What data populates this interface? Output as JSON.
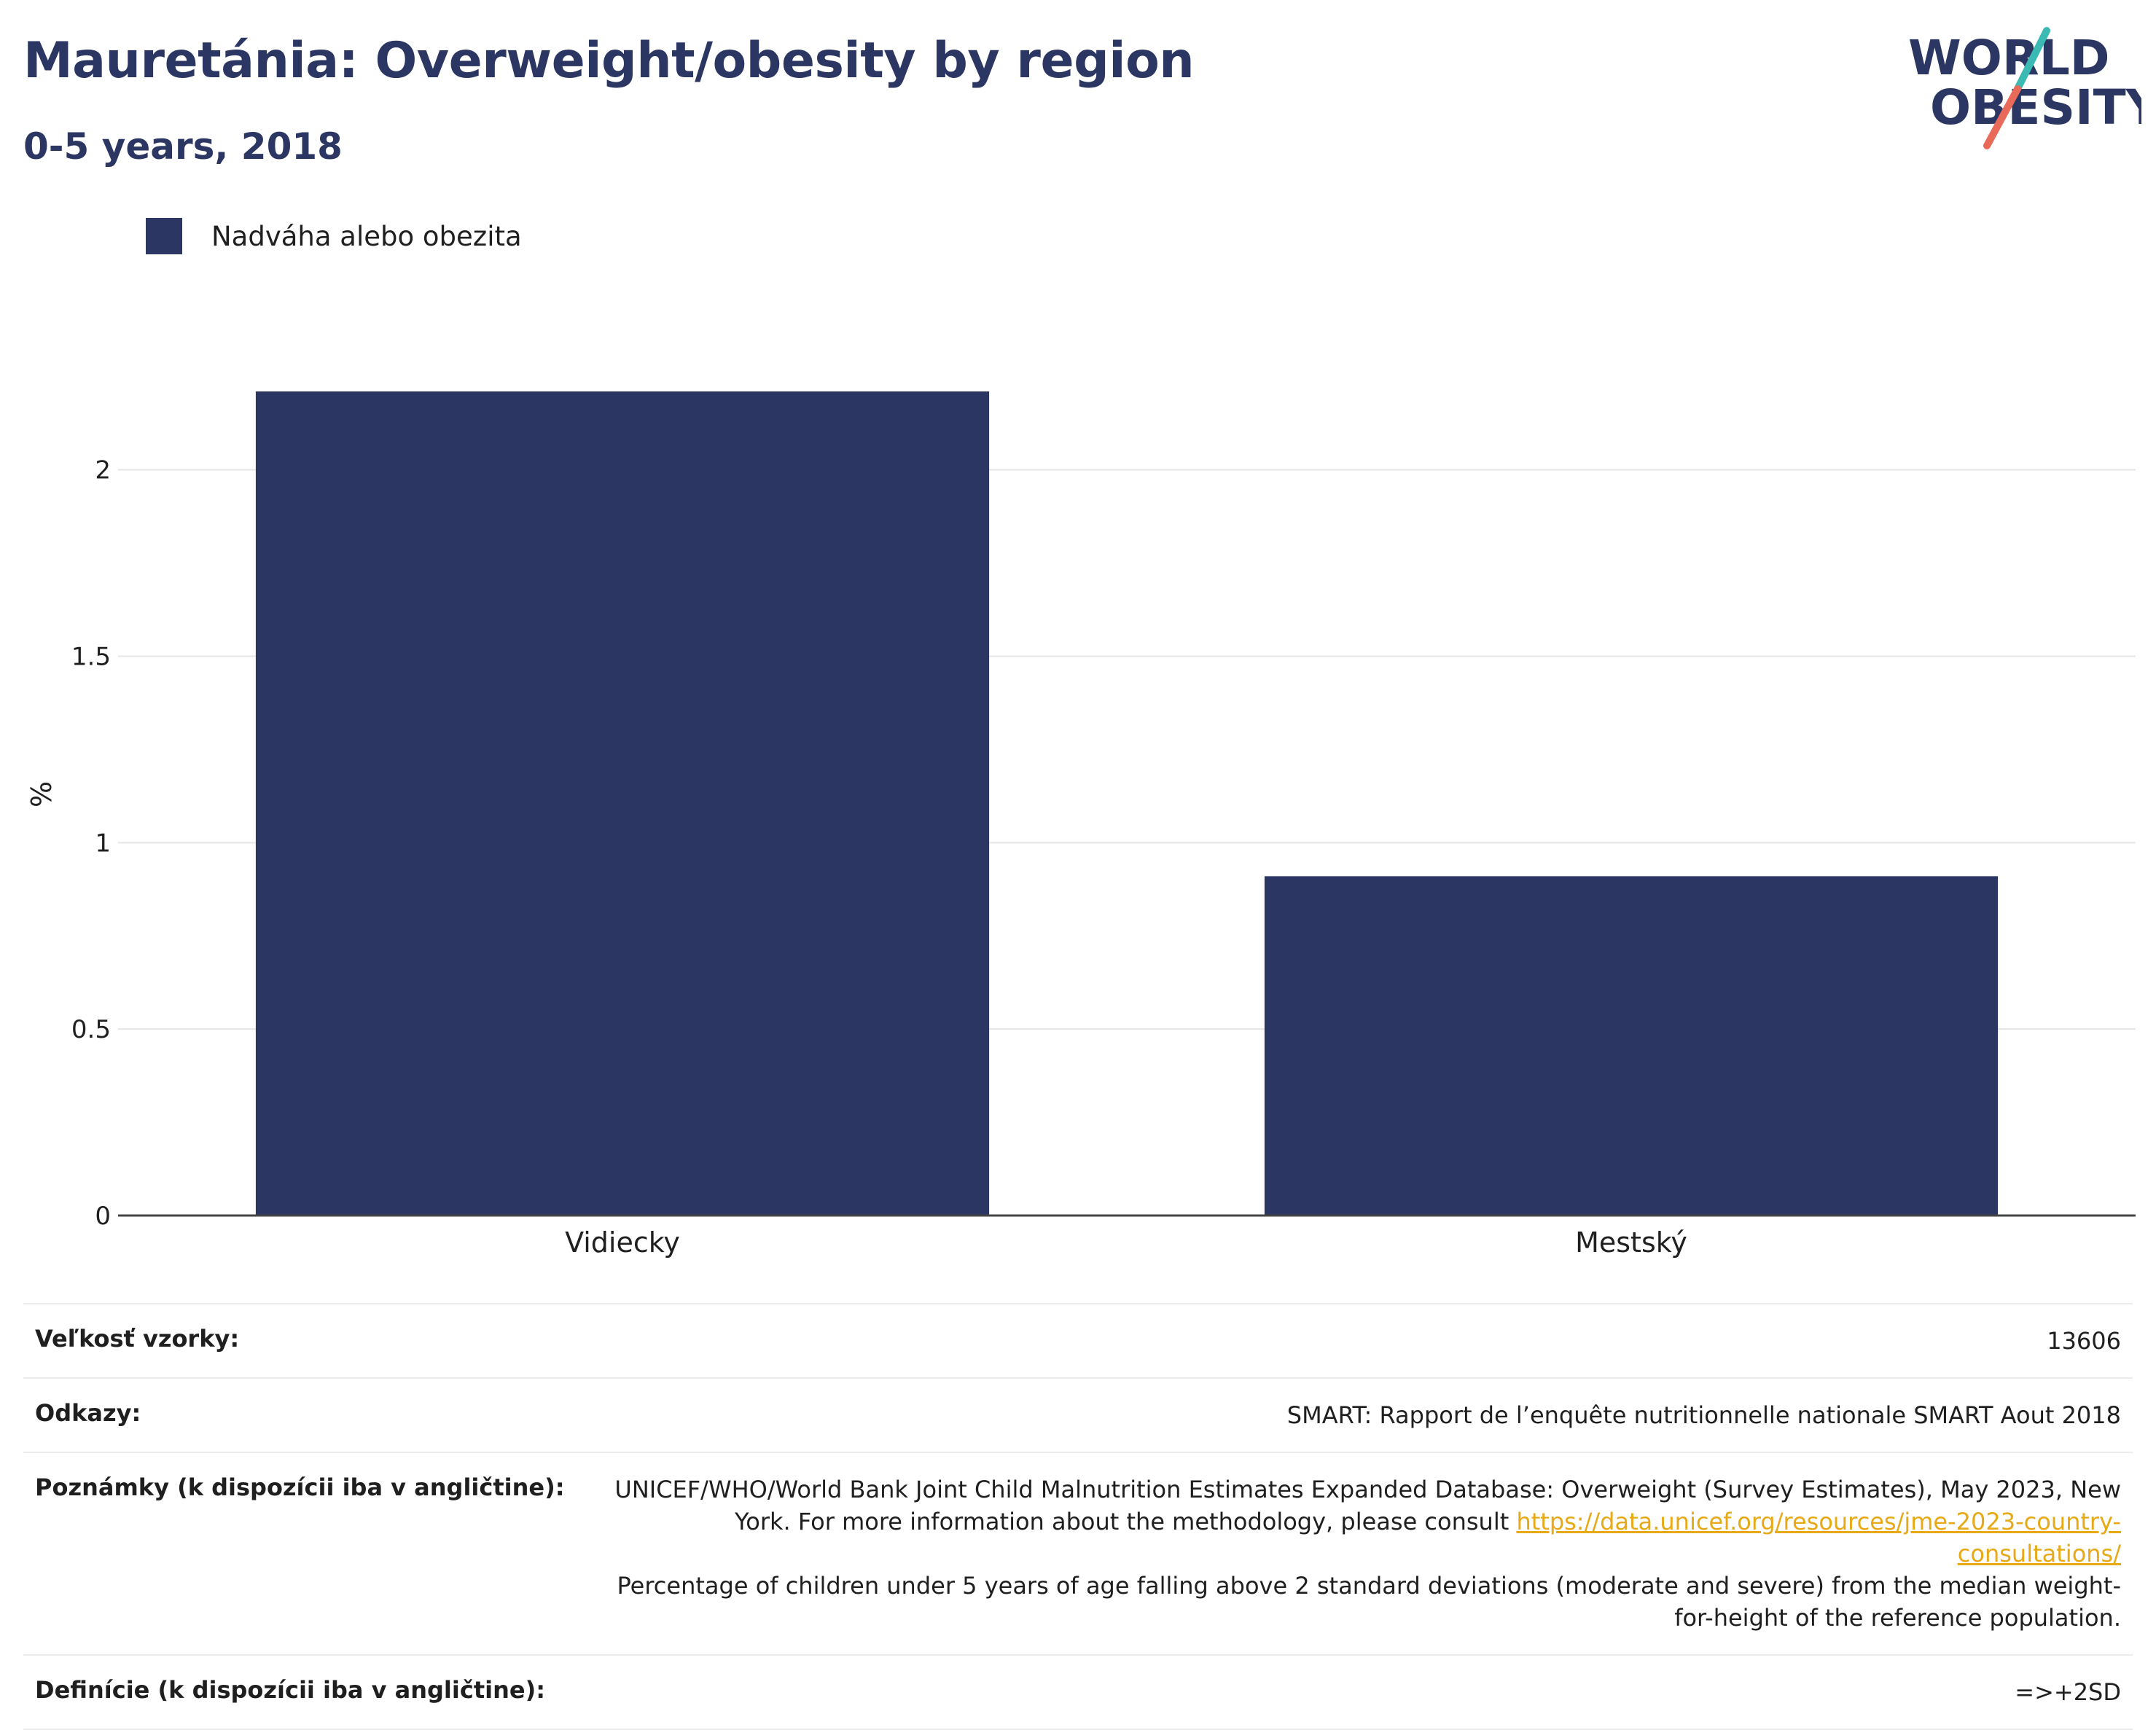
{
  "header": {
    "title": "Mauretánia: Overweight/obesity by region",
    "subtitle": "0-5 years, 2018"
  },
  "logo": {
    "line1": "WORLD",
    "line2": "OBESITY"
  },
  "colors": {
    "bar": "#2b3663",
    "title": "#2b3663",
    "link": "#e8a917"
  },
  "chart_data": {
    "type": "bar",
    "categories": [
      "Vidiecky",
      "Mestský"
    ],
    "series": [
      {
        "name": "Nadváha alebo obezita",
        "values": [
          2.21,
          0.91
        ]
      }
    ],
    "ylabel": "%",
    "ylim": [
      0,
      2.4
    ],
    "yticks": [
      0,
      0.5,
      1,
      1.5,
      2
    ],
    "ytick_labels": [
      "0",
      "0.5",
      "1",
      "1.5",
      "2"
    ],
    "grid": true,
    "legend": "top-left"
  },
  "info": {
    "sample_label": "Veľkosť vzorky:",
    "sample_value": "13606",
    "refs_label": "Odkazy:",
    "refs_value": "SMART: Rapport de l’enquête nutritionnelle nationale SMART Aout 2018",
    "notes_label": "Poznámky (k dispozícii iba v angličtine):",
    "notes_pre": "UNICEF/WHO/World Bank Joint Child Malnutrition Estimates Expanded Database: Overweight (Survey Estimates), May 2023, New York. For more information about the methodology, please consult ",
    "notes_link": "https://data.unicef.org/resources/jme-2023-country-consultations/",
    "notes_post": "Percentage of children under 5 years of age falling above 2 standard deviations (moderate and severe) from the median weight-for-height of the reference population.",
    "defs_label": "Definície (k dispozícii iba v angličtine):",
    "defs_value": "=>+2SD"
  }
}
